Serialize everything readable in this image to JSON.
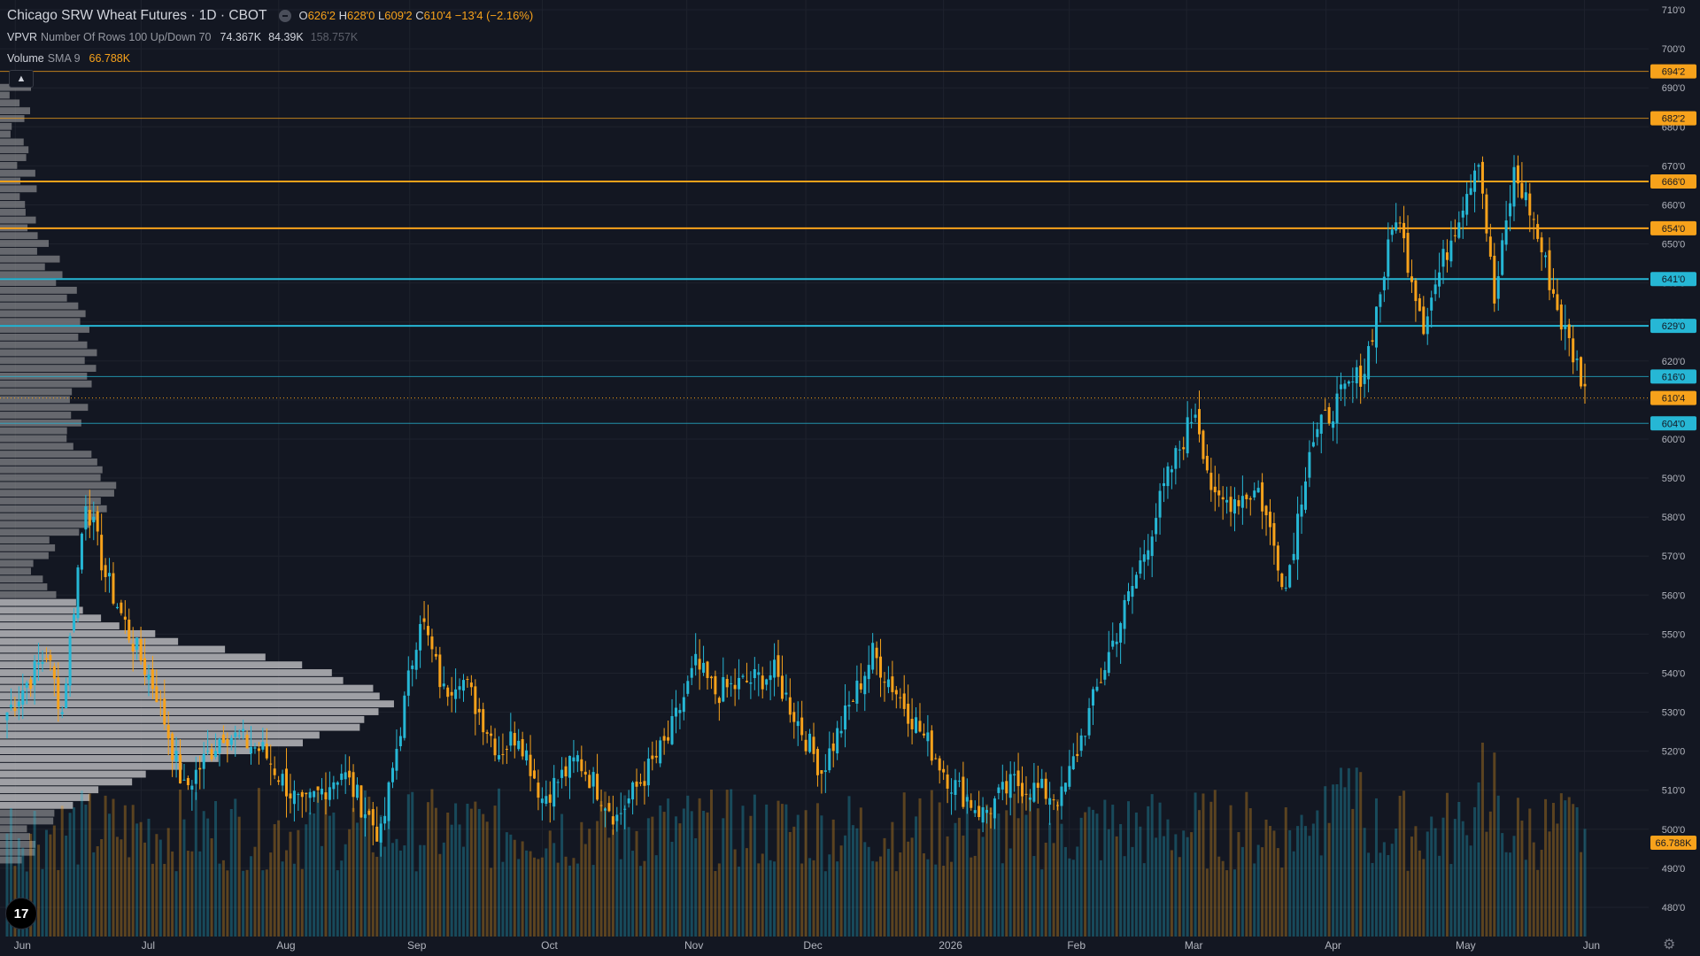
{
  "legend": {
    "title": "Chicago SRW Wheat Futures · 1D · CBOT",
    "ohlc": {
      "o_label": "O",
      "o": "626'2",
      "h_label": "H",
      "h": "628'0",
      "l_label": "L",
      "l": "609'2",
      "c_label": "C",
      "c": "610'4",
      "chg": "−13'4 (−2.16%)"
    },
    "vpvr": {
      "name": "VPVR",
      "params": "Number Of Rows 100 Up/Down 70",
      "v1": "74.367K",
      "v2": "84.39K",
      "v3": "158.757K"
    },
    "volume": {
      "name": "Volume",
      "params": "SMA 9",
      "value": "66.788K"
    }
  },
  "colors": {
    "up": "#26b7d5",
    "down": "#f7a21b",
    "bg": "#131722",
    "grid": "#1e222d",
    "text": "#d1d4dc",
    "vp": "#8a8b8f",
    "vp_light": "#b8b9bc",
    "orange_line": "#f7a21b",
    "cyan_line": "#26b7d5"
  },
  "icons": {
    "collapse": "chevron-up-icon",
    "logo": "tradingview-logo-icon",
    "settings": "gear-icon"
  },
  "chart_data": {
    "type": "candlestick",
    "title": "Chicago SRW Wheat Futures · 1D · CBOT",
    "ylim": [
      4725,
      7125
    ],
    "y_ticks": [
      "710'0",
      "700'0",
      "690'0",
      "680'0",
      "670'0",
      "660'0",
      "650'0",
      "640'0",
      "630'0",
      "620'0",
      "610'0",
      "600'0",
      "590'0",
      "580'0",
      "570'0",
      "560'0",
      "550'0",
      "540'0",
      "530'0",
      "520'0",
      "510'0",
      "500'0",
      "490'0",
      "480'0"
    ],
    "y_tick_values": [
      7100,
      7000,
      6900,
      6800,
      6700,
      6600,
      6500,
      6400,
      6300,
      6200,
      6100,
      6000,
      5900,
      5800,
      5700,
      5600,
      5500,
      5400,
      5300,
      5200,
      5100,
      5000,
      4900,
      4800
    ],
    "x_labels": [
      {
        "label": "Jun",
        "x": 0.009
      },
      {
        "label": "Jul",
        "x": 0.083
      },
      {
        "label": "Aug",
        "x": 0.164
      },
      {
        "label": "Sep",
        "x": 0.241
      },
      {
        "label": "Oct",
        "x": 0.319
      },
      {
        "label": "Nov",
        "x": 0.404
      },
      {
        "label": "Dec",
        "x": 0.474
      },
      {
        "label": "2026",
        "x": 0.555
      },
      {
        "label": "Feb",
        "x": 0.629
      },
      {
        "label": "Mar",
        "x": 0.698
      },
      {
        "label": "Apr",
        "x": 0.78
      },
      {
        "label": "May",
        "x": 0.858
      },
      {
        "label": "Jun",
        "x": 0.932
      }
    ],
    "level_lines": [
      {
        "price": 6942,
        "label": "694'2",
        "color": "#f7a21b",
        "width": 1
      },
      {
        "price": 6822,
        "label": "682'2",
        "color": "#f7a21b",
        "width": 1
      },
      {
        "price": 6660,
        "label": "666'0",
        "color": "#f7a21b",
        "width": 2
      },
      {
        "price": 6540,
        "label": "654'0",
        "color": "#f7a21b",
        "width": 2
      },
      {
        "price": 6410,
        "label": "641'0",
        "color": "#26b7d5",
        "width": 2
      },
      {
        "price": 6290,
        "label": "629'0",
        "color": "#26b7d5",
        "width": 2
      },
      {
        "price": 6160,
        "label": "616'0",
        "color": "#26b7d5",
        "width": 1
      },
      {
        "price": 6040,
        "label": "604'0",
        "color": "#26b7d5",
        "width": 1
      }
    ],
    "last_price": {
      "price": 6105,
      "label": "610'4"
    },
    "volume_sma_label": "66.788K",
    "closes_anchors": [
      [
        0,
        5300
      ],
      [
        10,
        5450
      ],
      [
        14,
        5300
      ],
      [
        20,
        5850
      ],
      [
        25,
        5650
      ],
      [
        31,
        5500
      ],
      [
        38,
        5350
      ],
      [
        45,
        5100
      ],
      [
        55,
        5250
      ],
      [
        65,
        5200
      ],
      [
        75,
        5050
      ],
      [
        85,
        5150
      ],
      [
        95,
        4980
      ],
      [
        105,
        5550
      ],
      [
        111,
        5350
      ],
      [
        115,
        5400
      ],
      [
        125,
        5200
      ],
      [
        130,
        5250
      ],
      [
        136,
        5080
      ],
      [
        145,
        5180
      ],
      [
        155,
        5030
      ],
      [
        168,
        5230
      ],
      [
        175,
        5420
      ],
      [
        180,
        5350
      ],
      [
        195,
        5400
      ],
      [
        207,
        5150
      ],
      [
        220,
        5450
      ],
      [
        228,
        5320
      ],
      [
        240,
        5120
      ],
      [
        248,
        5040
      ],
      [
        256,
        5120
      ],
      [
        268,
        5080
      ],
      [
        280,
        5450
      ],
      [
        287,
        5650
      ],
      [
        295,
        5900
      ],
      [
        302,
        6080
      ],
      [
        307,
        5830
      ],
      [
        318,
        5870
      ],
      [
        325,
        5620
      ],
      [
        331,
        5980
      ],
      [
        337,
        6080
      ],
      [
        345,
        6180
      ],
      [
        353,
        6580
      ],
      [
        360,
        6300
      ],
      [
        368,
        6550
      ],
      [
        374,
        6730
      ],
      [
        378,
        6350
      ],
      [
        383,
        6680
      ],
      [
        387,
        6590
      ],
      [
        395,
        6300
      ],
      [
        401,
        6135
      ]
    ],
    "volume_scale": "relative",
    "vp_rows": 100
  }
}
